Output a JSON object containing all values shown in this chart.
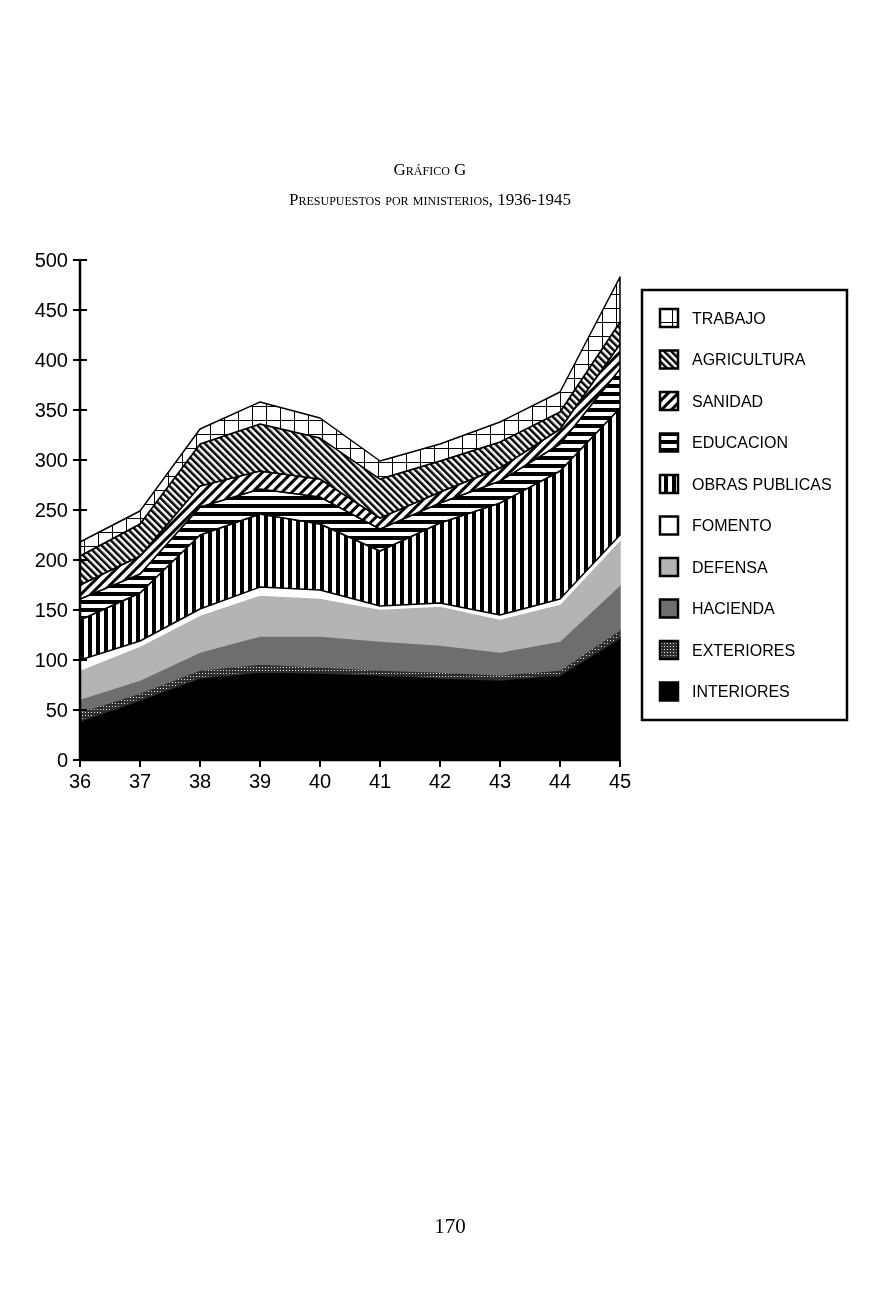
{
  "chart_data": {
    "type": "area",
    "stacked": true,
    "title": "Gráfico G",
    "subtitle": "Presupuestos por ministerios, 1936-1945",
    "annotations": [
      "170"
    ],
    "x": [
      36,
      37,
      38,
      39,
      40,
      41,
      42,
      43,
      44,
      45
    ],
    "xlim": [
      36,
      45
    ],
    "xticks": [
      36,
      37,
      38,
      39,
      40,
      41,
      42,
      43,
      44,
      45
    ],
    "ylim": [
      0,
      500
    ],
    "yticks": [
      0,
      50,
      100,
      150,
      200,
      250,
      300,
      350,
      400,
      450,
      500
    ],
    "legend": "right",
    "series": [
      {
        "name": "INTERIORES",
        "color": "#000000",
        "values": [
          39,
          60,
          82,
          88,
          87,
          85,
          82,
          80,
          85,
          122
        ]
      },
      {
        "name": "EXTERIORES",
        "color": "#2e2e2e",
        "values": [
          9,
          7,
          8,
          8,
          6,
          5,
          6,
          5,
          5,
          8
        ]
      },
      {
        "name": "HACIENDA",
        "color": "#6e6e6e",
        "values": [
          13,
          13,
          18,
          28,
          31,
          29,
          27,
          23,
          29,
          45
        ]
      },
      {
        "name": "DEFENSA",
        "color": "#b4b4b4",
        "values": [
          29,
          34,
          37,
          41,
          38,
          32,
          39,
          33,
          37,
          45
        ]
      },
      {
        "name": "FOMENTO",
        "color": "#ffffff",
        "values": [
          10,
          5,
          6,
          8,
          8,
          3,
          3,
          4,
          5,
          5
        ]
      },
      {
        "name": "OBRAS PUBLICAS",
        "color": "#000000",
        "values": [
          40,
          48,
          74,
          73,
          66,
          55,
          80,
          112,
          128,
          127
        ]
      },
      {
        "name": "EDUCACION",
        "color": "#000000",
        "values": [
          21,
          19,
          28,
          25,
          27,
          22,
          20,
          22,
          27,
          39
        ]
      },
      {
        "name": "SANIDAD",
        "color": "#000000",
        "values": [
          14,
          18,
          21,
          18,
          18,
          11,
          11,
          13,
          15,
          25
        ]
      },
      {
        "name": "AGRICULTURA",
        "color": "#000000",
        "values": [
          29,
          32,
          42,
          47,
          41,
          39,
          31,
          26,
          17,
          22
        ]
      },
      {
        "name": "TRABAJO",
        "color": "#000000",
        "values": [
          14,
          13,
          15,
          22,
          20,
          18,
          17,
          20,
          20,
          45
        ]
      }
    ]
  }
}
